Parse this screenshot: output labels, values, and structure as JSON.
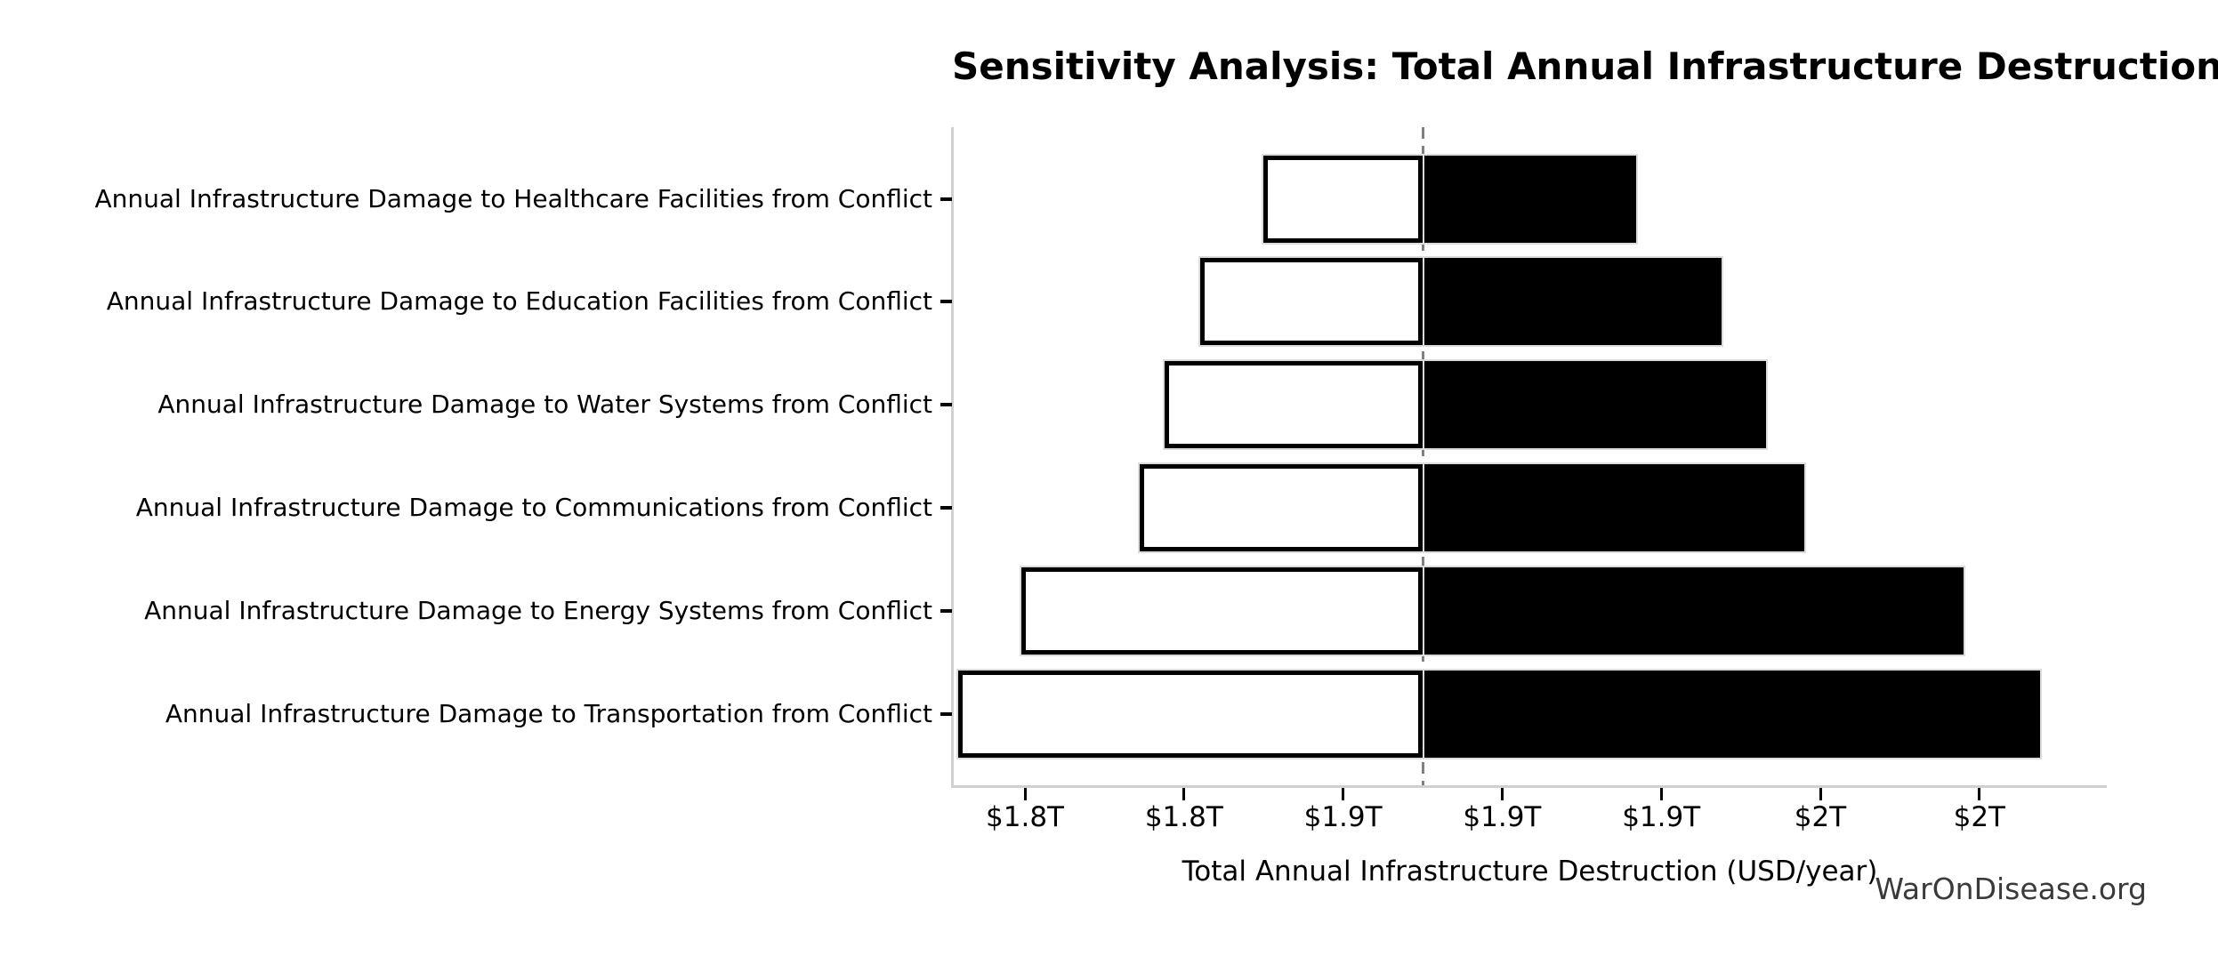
{
  "title": "Sensitivity Analysis: Total Annual Infrastructure Destruction",
  "watermark": "WarOnDisease.org",
  "colors": {
    "bar_high_fill": "#000000",
    "bar_low_fill": "#ffffff",
    "bar_low_edge": "#000000",
    "bar_outline": "#dcdcdc",
    "baseline_line": "#808080",
    "axis_spine": "#d0d0d0",
    "text": "#000000",
    "watermark_text": "#3a3a3a"
  },
  "chart_data": {
    "type": "bar",
    "subtype": "tornado-horizontal",
    "title": "Sensitivity Analysis: Total Annual Infrastructure Destruction",
    "xlabel": "Total Annual Infrastructure Destruction (USD/year)",
    "ylabel": "",
    "unit": "trillion USD per year",
    "baseline": 1.875,
    "xlim": [
      1.727,
      2.09
    ],
    "grid": false,
    "legend": null,
    "x_ticks": [
      {
        "value": 1.75,
        "label": "$1.8T"
      },
      {
        "value": 1.8,
        "label": "$1.8T"
      },
      {
        "value": 1.85,
        "label": "$1.9T"
      },
      {
        "value": 1.9,
        "label": "$1.9T"
      },
      {
        "value": 1.95,
        "label": "$1.9T"
      },
      {
        "value": 2.0,
        "label": "$2T"
      },
      {
        "value": 2.05,
        "label": "$2T"
      }
    ],
    "categories": [
      "Annual Infrastructure Damage to Healthcare Facilities from Conflict",
      "Annual Infrastructure Damage to Education Facilities from Conflict",
      "Annual Infrastructure Damage to Water Systems from Conflict",
      "Annual Infrastructure Damage to Communications from Conflict",
      "Annual Infrastructure Damage to Energy Systems from Conflict",
      "Annual Infrastructure Damage to Transportation from Conflict"
    ],
    "series": [
      {
        "name": "low",
        "role": "left-of-baseline",
        "fill": "#ffffff",
        "values": [
          1.825,
          1.805,
          1.794,
          1.786,
          1.749,
          1.729
        ]
      },
      {
        "name": "high",
        "role": "right-of-baseline",
        "fill": "#000000",
        "values": [
          1.942,
          1.969,
          1.983,
          1.995,
          2.045,
          2.069
        ]
      }
    ]
  }
}
